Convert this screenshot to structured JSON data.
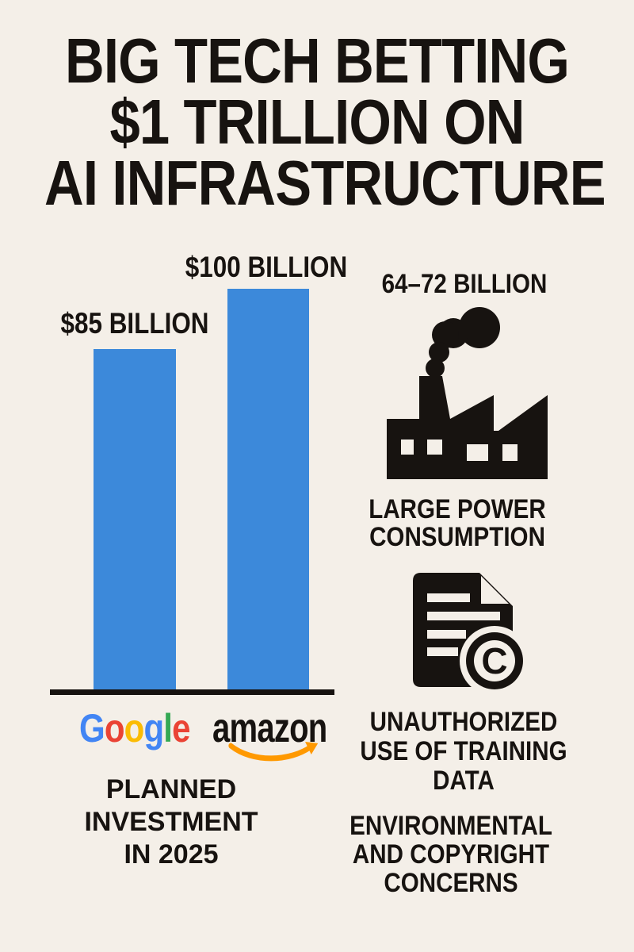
{
  "colors": {
    "background": "#F4EFE8",
    "ink": "#171310",
    "bar_blue": "#3C89DA",
    "amazon_orange": "#FF9900",
    "google_blue": "#4285F4",
    "google_red": "#EA4335",
    "google_yellow": "#FBBC05",
    "google_green": "#34A853"
  },
  "title": {
    "lines": [
      "BIG TECH BETTING",
      "$1 TRILLION ON",
      "AI INFRASTRUCTURE"
    ]
  },
  "chart": {
    "bars": [
      {
        "value_label": "$85 BILLION",
        "company": "Google",
        "value_billion_usd": 85
      },
      {
        "value_label": "$100 BILLION",
        "company": "Amazon",
        "value_billion_usd": 100
      }
    ],
    "caption_lines": [
      "PLANNED",
      "INVESTMENT",
      "IN 2025"
    ]
  },
  "chart_data": {
    "type": "bar",
    "title": "BIG TECH BETTING $1 TRILLION ON AI INFRASTRUCTURE",
    "categories": [
      "Google",
      "Amazon"
    ],
    "values": [
      85,
      100
    ],
    "unit": "billion USD",
    "data_labels": [
      "$85 BILLION",
      "$100 BILLION"
    ],
    "caption": "PLANNED INVESTMENT IN 2025",
    "bar_color": "#3C89DA",
    "ylim": [
      0,
      100
    ],
    "grid": false,
    "legend": "none",
    "axis_style": "black baseline only, no ticks"
  },
  "power_section": {
    "headline": "64–72 BILLION",
    "icon": "factory-smoke-icon",
    "caption_lines": [
      "LARGE POWER",
      "CONSUMPTION"
    ]
  },
  "copyright_section": {
    "icon": "document-copyright-icon",
    "caption_lines": [
      "UNAUTHORIZED",
      "USE OF TRAINING",
      "DATA"
    ]
  },
  "concerns": {
    "lines": [
      "ENVIRONMENTAL",
      "AND COPYRIGHT",
      "CONCERNS"
    ]
  },
  "logos": {
    "google": {
      "letters": [
        {
          "ch": "G",
          "color": "#4285F4"
        },
        {
          "ch": "o",
          "color": "#EA4335"
        },
        {
          "ch": "o",
          "color": "#FBBC05"
        },
        {
          "ch": "g",
          "color": "#4285F4"
        },
        {
          "ch": "l",
          "color": "#34A853"
        },
        {
          "ch": "e",
          "color": "#EA4335"
        }
      ]
    },
    "amazon": {
      "text": "amazon",
      "smile_color": "#FF9900",
      "smile_icon": "amazon-smile-arrow-icon"
    }
  }
}
